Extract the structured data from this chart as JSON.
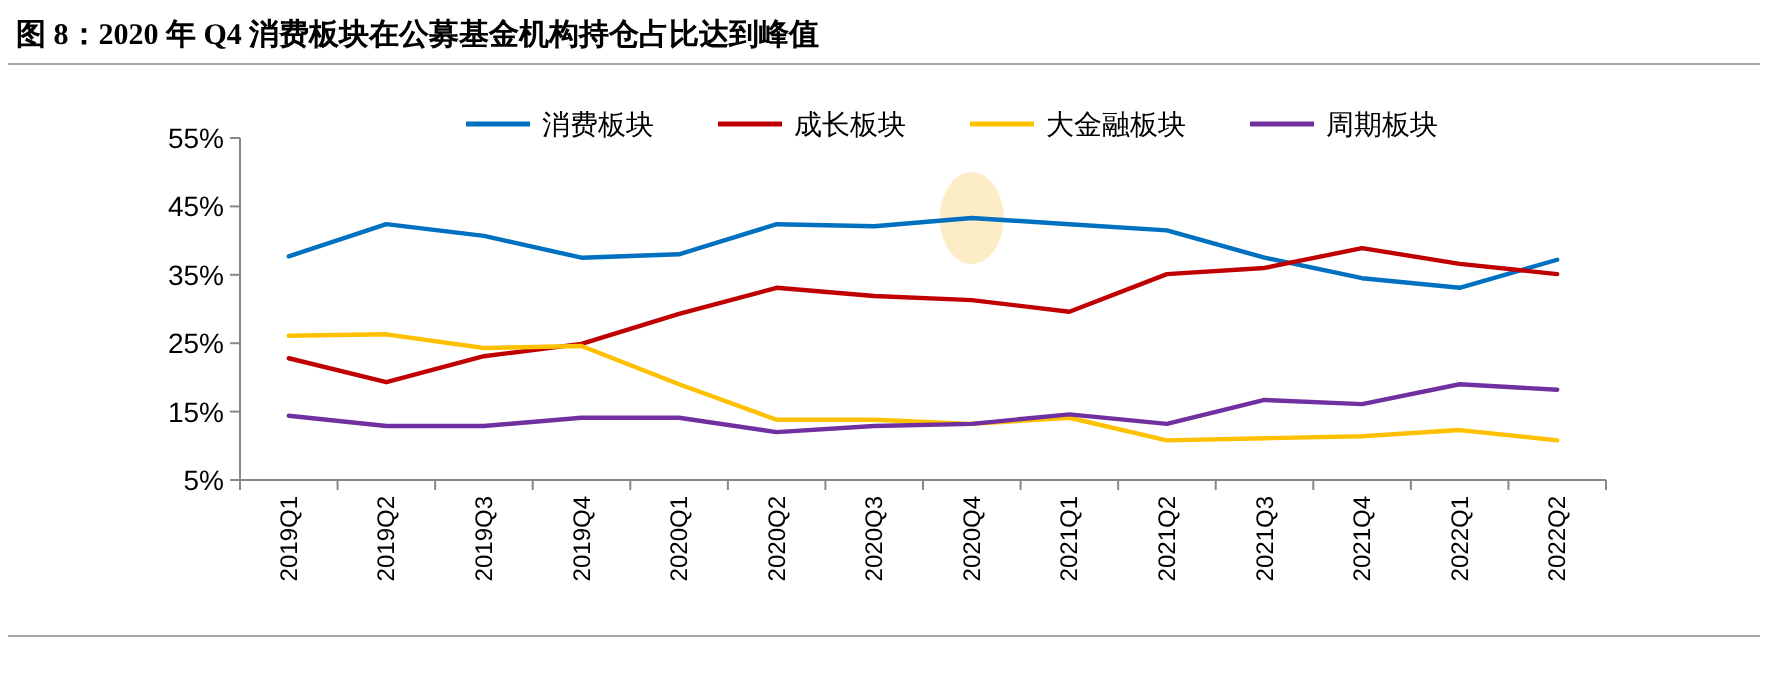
{
  "chart_data": {
    "type": "line",
    "title": "图 8：2020 年 Q4 消费板块在公募基金机构持仓占比达到峰值",
    "categories": [
      "2019Q1",
      "2019Q2",
      "2019Q3",
      "2019Q4",
      "2020Q1",
      "2020Q2",
      "2020Q3",
      "2020Q4",
      "2021Q1",
      "2021Q2",
      "2021Q3",
      "2021Q4",
      "2022Q1",
      "2022Q2"
    ],
    "series": [
      {
        "name": "消费板块",
        "color": "#0070c0",
        "values": [
          37.7,
          42.4,
          40.7,
          37.5,
          38.0,
          42.4,
          42.1,
          43.3,
          42.4,
          41.5,
          37.5,
          34.5,
          33.1,
          37.2
        ]
      },
      {
        "name": "成长板块",
        "color": "#c00000",
        "values": [
          22.8,
          19.3,
          23.1,
          24.9,
          29.3,
          33.1,
          31.9,
          31.3,
          29.6,
          35.1,
          36.0,
          38.9,
          36.6,
          35.1
        ]
      },
      {
        "name": "大金融板块",
        "color": "#ffc000",
        "values": [
          26.1,
          26.3,
          24.3,
          24.6,
          19.0,
          13.8,
          13.8,
          13.2,
          14.1,
          10.8,
          11.1,
          11.4,
          12.3,
          10.8
        ]
      },
      {
        "name": "周期板块",
        "color": "#7030a0",
        "values": [
          14.4,
          12.9,
          12.9,
          14.1,
          14.1,
          12.0,
          12.9,
          13.2,
          14.6,
          13.2,
          16.7,
          16.1,
          19.0,
          18.2
        ]
      }
    ],
    "ylim": [
      5,
      55
    ],
    "yticks": [
      {
        "value": 5,
        "label": "5%"
      },
      {
        "value": 15,
        "label": "15%"
      },
      {
        "value": 25,
        "label": "25%"
      },
      {
        "value": 35,
        "label": "35%"
      },
      {
        "value": 45,
        "label": "45%"
      },
      {
        "value": 55,
        "label": "55%"
      }
    ],
    "legend": "top"
  }
}
